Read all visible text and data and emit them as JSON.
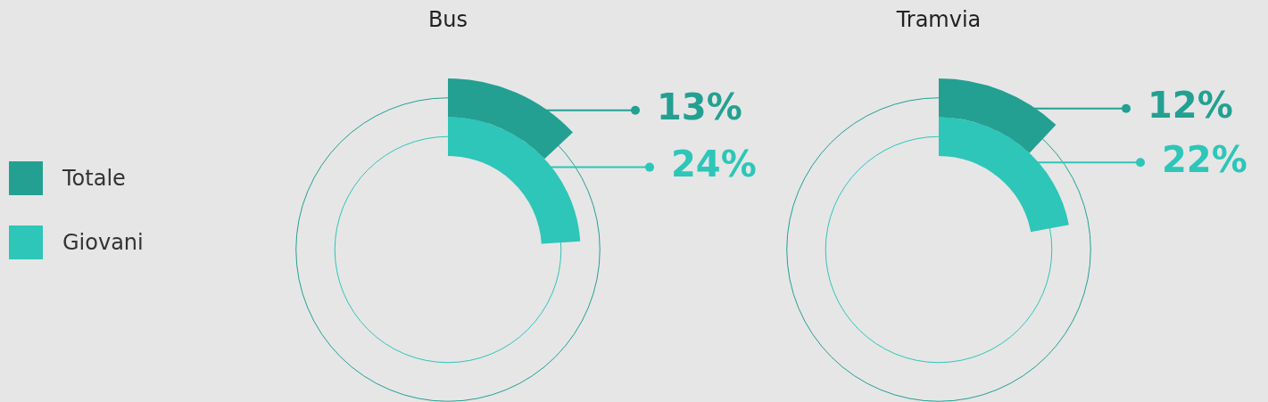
{
  "chart_data": [
    {
      "type": "donut",
      "title": "Bus",
      "legend": "left",
      "series": [
        {
          "name": "Totale",
          "color": "#23a092",
          "values": [
            13
          ],
          "value_labels": [
            "13%"
          ]
        },
        {
          "name": "Giovani",
          "color": "#2dc6b8",
          "values": [
            24
          ],
          "value_labels": [
            "24%"
          ]
        }
      ]
    },
    {
      "type": "donut",
      "title": "Tramvia",
      "series": [
        {
          "color": "#23a092",
          "values": [
            12
          ],
          "value_labels": [
            "12%"
          ]
        },
        {
          "color": "#2dc6b8",
          "values": [
            22
          ],
          "value_labels": [
            "22%"
          ]
        }
      ]
    }
  ]
}
